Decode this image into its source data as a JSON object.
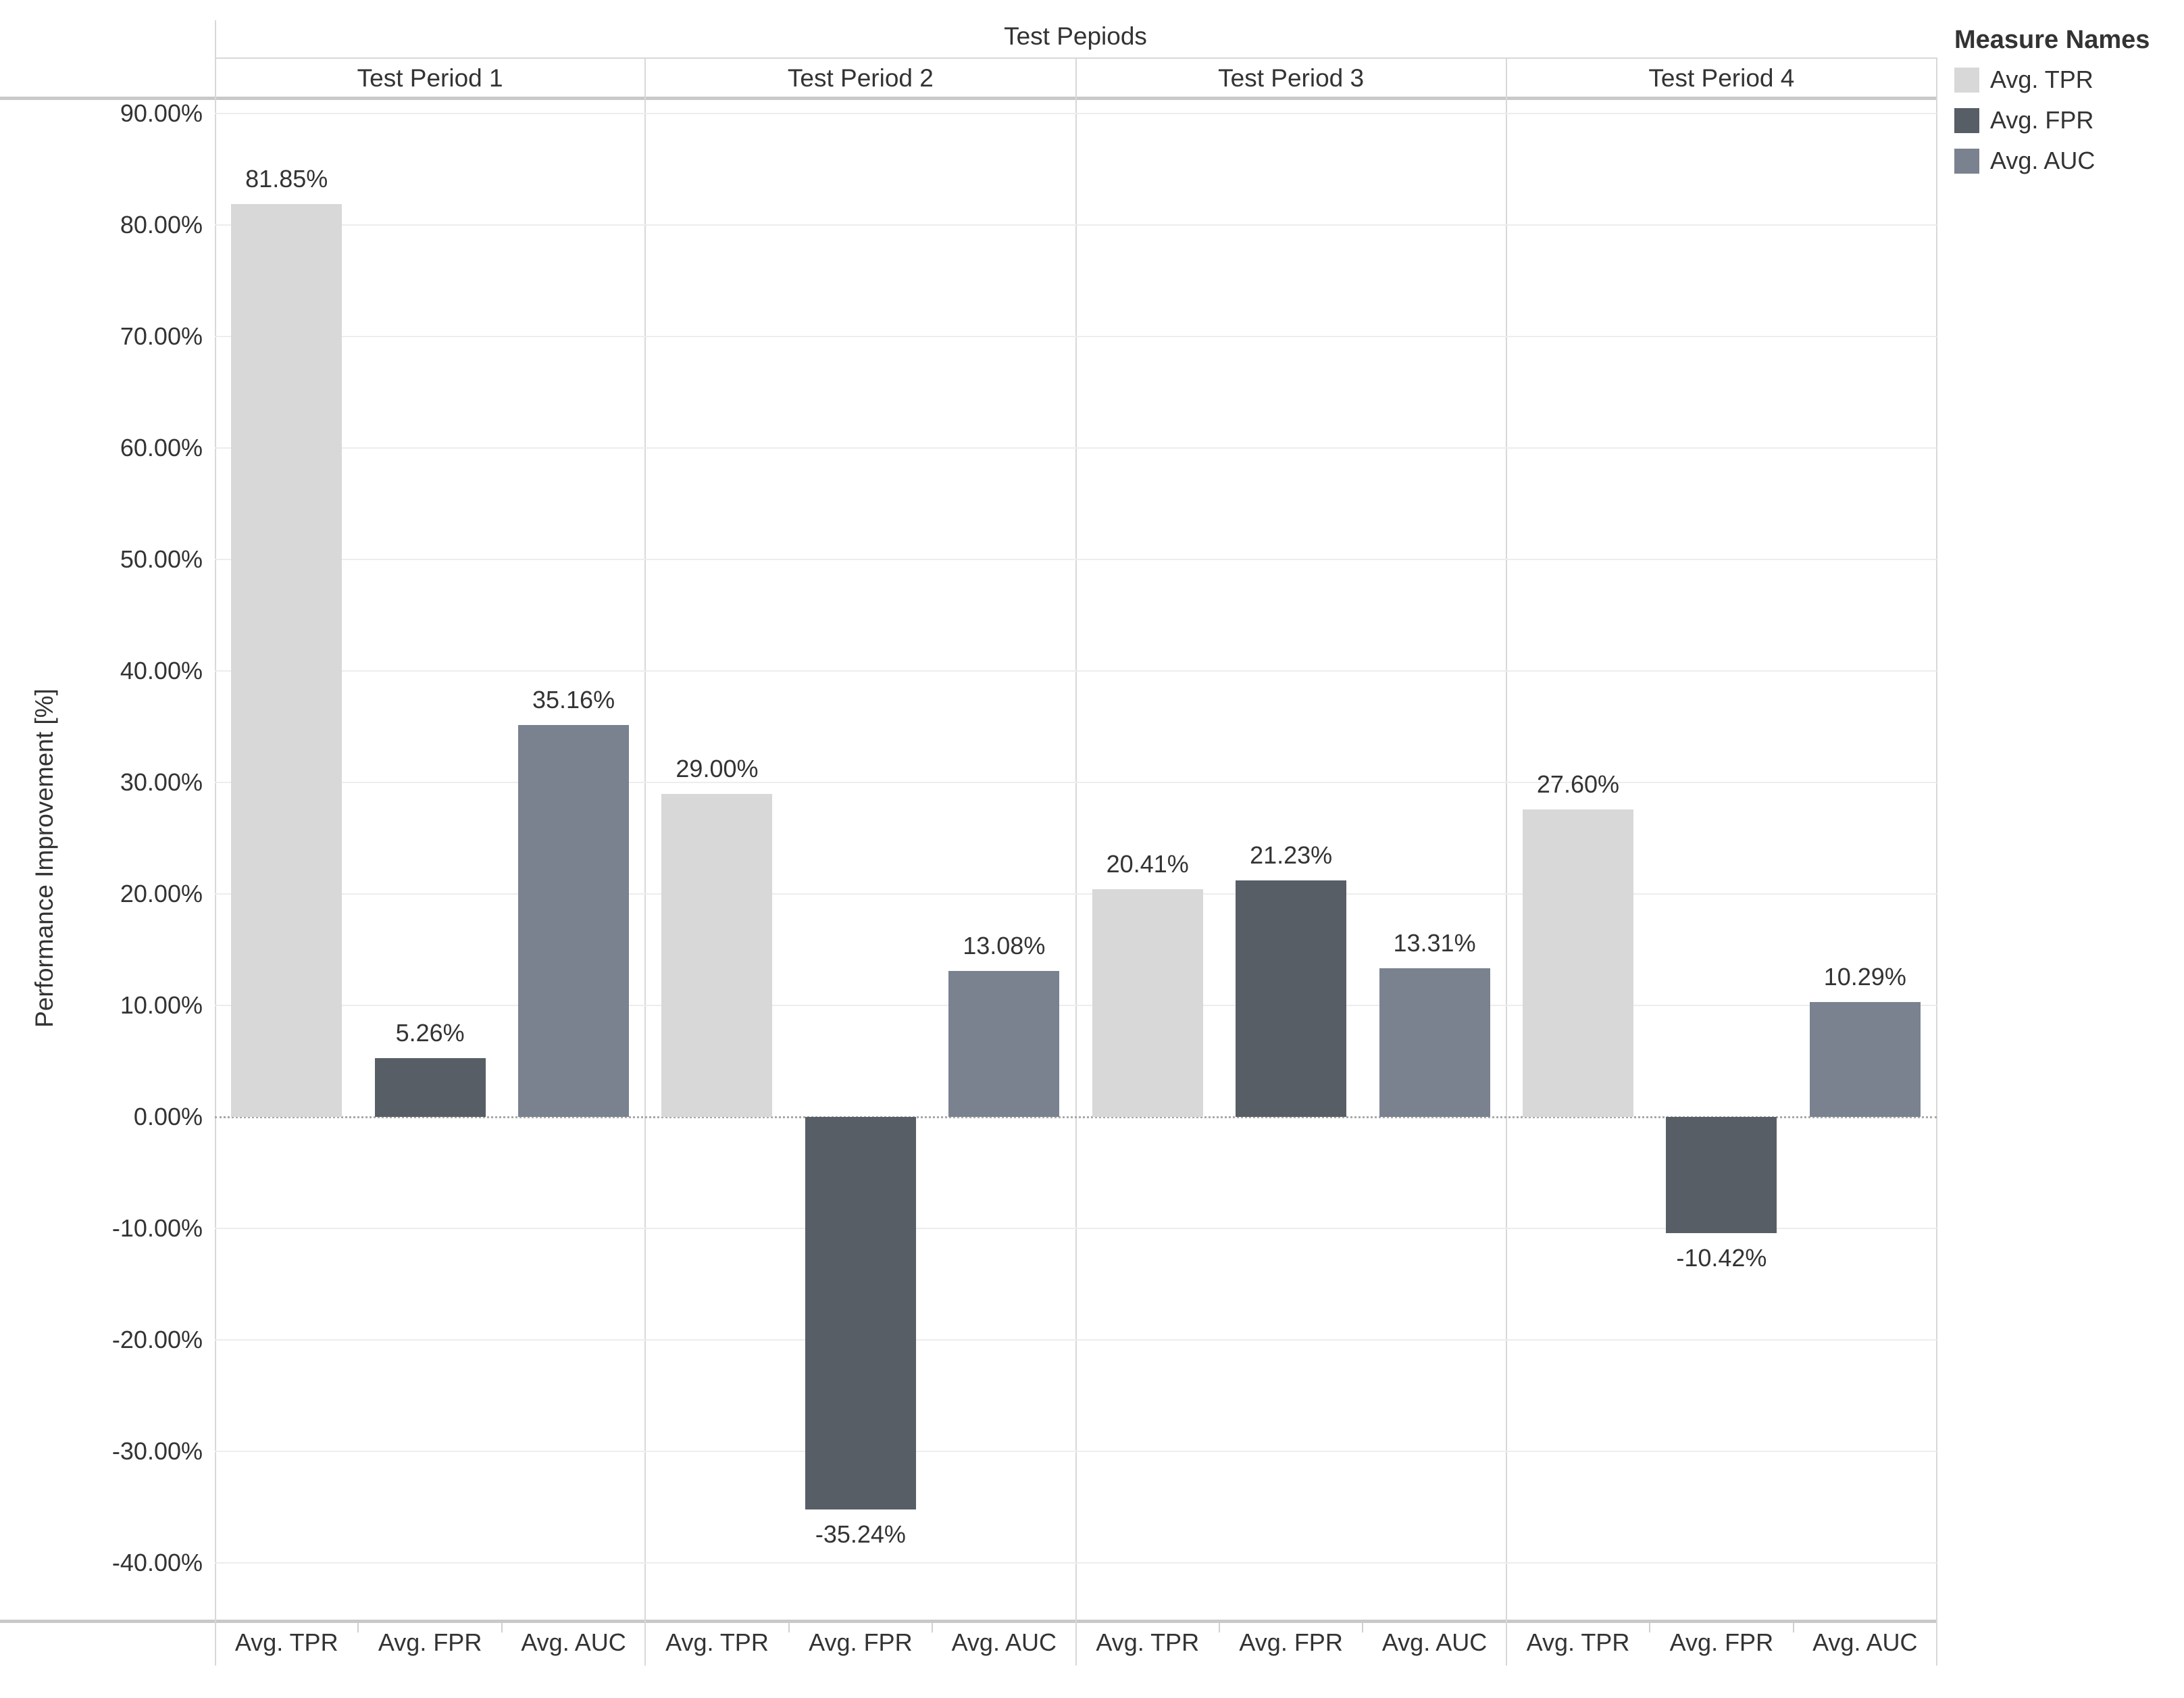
{
  "chart_data": {
    "type": "bar",
    "title": "Test Pepiods",
    "ylabel": "Performance Improvement [%]",
    "ylim": [
      -45,
      91.5
    ],
    "grid": true,
    "zero_line": 0,
    "yticks": [
      {
        "value": 90,
        "label": "90.00%"
      },
      {
        "value": 80,
        "label": "80.00%"
      },
      {
        "value": 70,
        "label": "70.00%"
      },
      {
        "value": 60,
        "label": "60.00%"
      },
      {
        "value": 50,
        "label": "50.00%"
      },
      {
        "value": 40,
        "label": "40.00%"
      },
      {
        "value": 30,
        "label": "30.00%"
      },
      {
        "value": 20,
        "label": "20.00%"
      },
      {
        "value": 10,
        "label": "10.00%"
      },
      {
        "value": 0,
        "label": "0.00%"
      },
      {
        "value": -10,
        "label": "-10.00%"
      },
      {
        "value": -20,
        "label": "-20.00%"
      },
      {
        "value": -30,
        "label": "-30.00%"
      },
      {
        "value": -40,
        "label": "-40.00%"
      }
    ],
    "panels": [
      "Test Period 1",
      "Test Period 2",
      "Test Period 3",
      "Test Period 4"
    ],
    "categories": [
      "Avg. TPR",
      "Avg. FPR",
      "Avg. AUC"
    ],
    "series": [
      {
        "name": "Avg. TPR",
        "color": "#d8d8d8",
        "values": [
          81.85,
          29.0,
          20.41,
          27.6
        ],
        "labels": [
          "81.85%",
          "29.00%",
          "20.41%",
          "27.60%"
        ]
      },
      {
        "name": "Avg. FPR",
        "color": "#585e66",
        "values": [
          5.26,
          -35.24,
          21.23,
          -10.42
        ],
        "labels": [
          "5.26%",
          "-35.24%",
          "21.23%",
          "-10.42%"
        ]
      },
      {
        "name": "Avg. AUC",
        "color": "#7a8290",
        "values": [
          35.16,
          13.08,
          13.31,
          10.29
        ],
        "labels": [
          "35.16%",
          "13.08%",
          "13.31%",
          "10.29%"
        ]
      }
    ],
    "legend_position": "top-right"
  },
  "legend": {
    "title": "Measure Names",
    "items": [
      {
        "label": "Avg. TPR",
        "color": "#d8d8d8"
      },
      {
        "label": "Avg. FPR",
        "color": "#585e66"
      },
      {
        "label": "Avg. AUC",
        "color": "#7a8290"
      }
    ]
  },
  "colors": {
    "text": "#333333",
    "gridline": "#ededed",
    "zero_line": "#a8a8a8",
    "panel_border": "#d8d8d8",
    "axis_line": "#c9c9c9",
    "background": "#ffffff"
  }
}
